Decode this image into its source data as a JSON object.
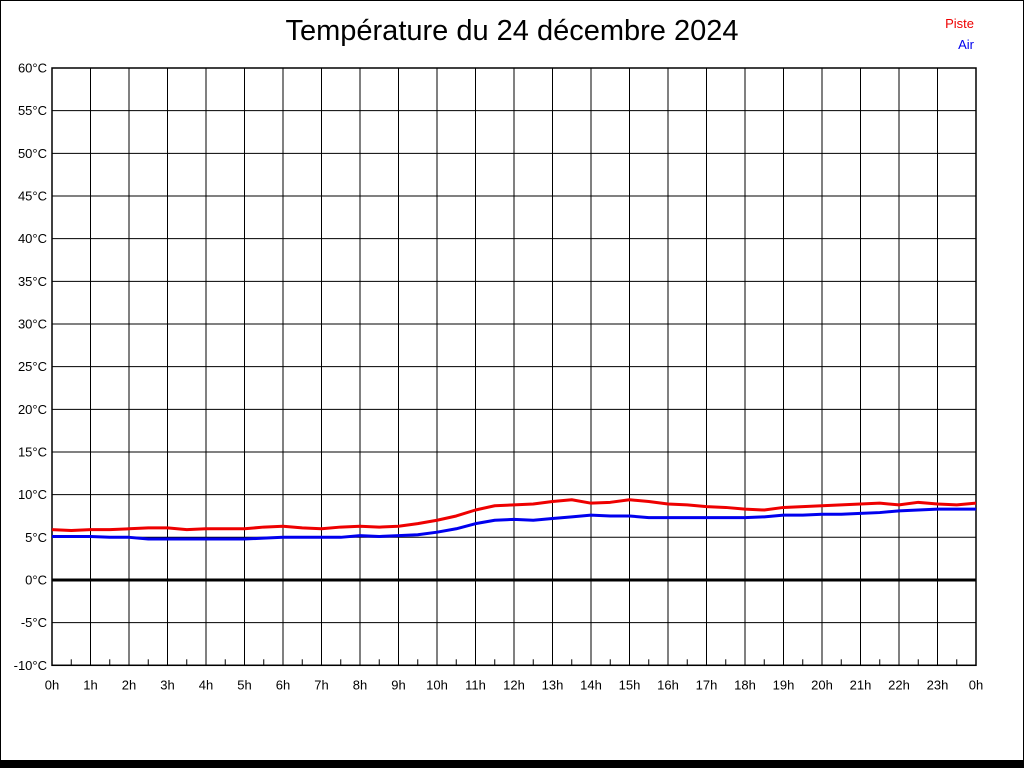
{
  "window": {
    "background": "#ffffff",
    "border_color": "#000000"
  },
  "chart_data": {
    "type": "line",
    "title": "Température du 24 décembre 2024",
    "xlabel": "",
    "ylabel": "",
    "legend_position": "top-right",
    "grid": true,
    "x_range": [
      0,
      24
    ],
    "x_step": 0.5,
    "x_tick_labels": [
      "0h",
      "1h",
      "2h",
      "3h",
      "4h",
      "5h",
      "6h",
      "7h",
      "8h",
      "9h",
      "10h",
      "11h",
      "12h",
      "13h",
      "14h",
      "15h",
      "16h",
      "17h",
      "18h",
      "19h",
      "20h",
      "21h",
      "22h",
      "23h",
      "0h"
    ],
    "ylim": [
      -10,
      60
    ],
    "y_tick_step": 5,
    "y_tick_suffix": "°C",
    "zero_line_value": 0,
    "axis_color": "#000000",
    "series": [
      {
        "name": "Piste",
        "color": "#ee0000",
        "values": [
          5.9,
          5.8,
          5.9,
          5.9,
          6.0,
          6.1,
          6.1,
          5.9,
          6.0,
          6.0,
          6.0,
          6.2,
          6.3,
          6.1,
          6.0,
          6.2,
          6.3,
          6.2,
          6.3,
          6.6,
          7.0,
          7.5,
          8.2,
          8.7,
          8.8,
          8.9,
          9.2,
          9.4,
          9.0,
          9.1,
          9.4,
          9.2,
          8.9,
          8.8,
          8.6,
          8.5,
          8.3,
          8.2,
          8.5,
          8.6,
          8.7,
          8.8,
          8.9,
          9.0,
          8.8,
          9.1,
          8.9,
          8.8,
          9.0
        ]
      },
      {
        "name": "Air",
        "color": "#0000ee",
        "values": [
          5.1,
          5.1,
          5.1,
          5.0,
          5.0,
          4.8,
          4.8,
          4.8,
          4.8,
          4.8,
          4.8,
          4.9,
          5.0,
          5.0,
          5.0,
          5.0,
          5.2,
          5.1,
          5.2,
          5.3,
          5.6,
          6.0,
          6.6,
          7.0,
          7.1,
          7.0,
          7.2,
          7.4,
          7.6,
          7.5,
          7.5,
          7.3,
          7.3,
          7.3,
          7.3,
          7.3,
          7.3,
          7.4,
          7.6,
          7.6,
          7.7,
          7.7,
          7.8,
          7.9,
          8.1,
          8.2,
          8.3,
          8.3,
          8.3
        ]
      }
    ]
  }
}
